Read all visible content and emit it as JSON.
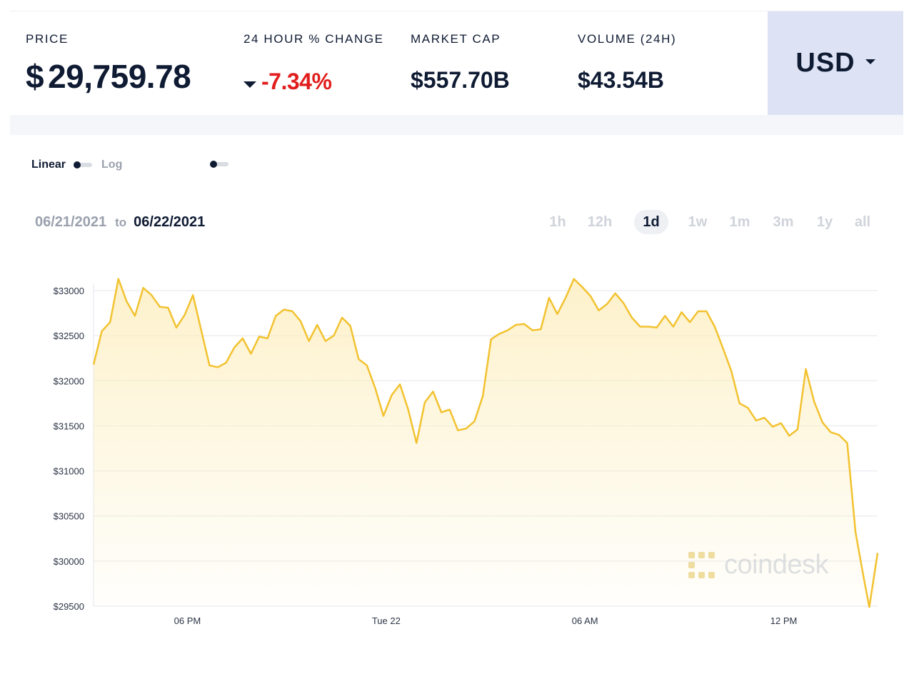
{
  "stats": {
    "price": {
      "label": "PRICE",
      "currency_symbol": "$",
      "value": "29,759.78"
    },
    "change_24h": {
      "label": "24 HOUR % CHANGE",
      "value": "-7.34%",
      "direction": "down"
    },
    "market_cap": {
      "label": "MARKET CAP",
      "value": "$557.70B"
    },
    "volume": {
      "label": "VOLUME (24H)",
      "value": "$43.54B"
    }
  },
  "currency_selector": {
    "value": "USD",
    "icon": "chevron-down-icon"
  },
  "scale_toggle": {
    "linear_label": "Linear",
    "log_label": "Log",
    "selected": "Linear"
  },
  "date_range": {
    "from": "06/21/2021",
    "to_word": "to",
    "to": "06/22/2021"
  },
  "time_ranges": [
    {
      "label": "1h",
      "active": false
    },
    {
      "label": "12h",
      "active": false
    },
    {
      "label": "1d",
      "active": true
    },
    {
      "label": "1w",
      "active": false
    },
    {
      "label": "1m",
      "active": false
    },
    {
      "label": "3m",
      "active": false
    },
    {
      "label": "1y",
      "active": false
    },
    {
      "label": "all",
      "active": false
    }
  ],
  "watermark": {
    "text": "coindesk"
  },
  "colors": {
    "line": "#f2c230",
    "fill_top": "#fdefc2",
    "negative": "#e11d1d",
    "accent_bg": "#dde3f4",
    "grid": "#e3e6ec"
  },
  "chart_data": {
    "type": "area",
    "title": "",
    "xlabel": "",
    "ylabel": "",
    "ylim": [
      29500,
      33000
    ],
    "y_ticks": [
      29500,
      30000,
      30500,
      31000,
      31500,
      32000,
      32500,
      33000
    ],
    "y_tick_labels": [
      "$29500",
      "$30000",
      "$30500",
      "$31000",
      "$31500",
      "$32000",
      "$32500",
      "$33000"
    ],
    "x_range": [
      "2021-06-21 15:10",
      "2021-06-22 14:50"
    ],
    "x_ticks": [
      {
        "label": "06 PM",
        "time": "2021-06-21 18:00"
      },
      {
        "label": "Tue 22",
        "time": "2021-06-22 00:00"
      },
      {
        "label": "06 AM",
        "time": "2021-06-22 06:00"
      },
      {
        "label": "12 PM",
        "time": "2021-06-22 12:00"
      }
    ],
    "grid": true,
    "series": [
      {
        "x": [
          "2021-06-21 15:10",
          "2021-06-21 15:25",
          "2021-06-21 15:40",
          "2021-06-21 15:55",
          "2021-06-21 16:10",
          "2021-06-21 16:25",
          "2021-06-21 16:40",
          "2021-06-21 16:55",
          "2021-06-21 17:10",
          "2021-06-21 17:25",
          "2021-06-21 17:40",
          "2021-06-21 17:55",
          "2021-06-21 18:10",
          "2021-06-21 18:25",
          "2021-06-21 18:40",
          "2021-06-21 18:55",
          "2021-06-21 19:10",
          "2021-06-21 19:25",
          "2021-06-21 19:40",
          "2021-06-21 19:55",
          "2021-06-21 20:10",
          "2021-06-21 20:25",
          "2021-06-21 20:40",
          "2021-06-21 20:55",
          "2021-06-21 21:10",
          "2021-06-21 21:25",
          "2021-06-21 21:40",
          "2021-06-21 21:55",
          "2021-06-21 22:10",
          "2021-06-21 22:25",
          "2021-06-21 22:40",
          "2021-06-21 22:55",
          "2021-06-21 23:10",
          "2021-06-21 23:25",
          "2021-06-21 23:40",
          "2021-06-21 23:55",
          "2021-06-22 00:10",
          "2021-06-22 00:25",
          "2021-06-22 00:40",
          "2021-06-22 00:55",
          "2021-06-22 01:10",
          "2021-06-22 01:25",
          "2021-06-22 01:40",
          "2021-06-22 01:55",
          "2021-06-22 02:10",
          "2021-06-22 02:25",
          "2021-06-22 02:40",
          "2021-06-22 02:55",
          "2021-06-22 03:10",
          "2021-06-22 03:25",
          "2021-06-22 03:40",
          "2021-06-22 03:55",
          "2021-06-22 04:10",
          "2021-06-22 04:25",
          "2021-06-22 04:40",
          "2021-06-22 04:55",
          "2021-06-22 05:10",
          "2021-06-22 05:25",
          "2021-06-22 05:40",
          "2021-06-22 05:55",
          "2021-06-22 06:10",
          "2021-06-22 06:25",
          "2021-06-22 06:40",
          "2021-06-22 06:55",
          "2021-06-22 07:10",
          "2021-06-22 07:25",
          "2021-06-22 07:40",
          "2021-06-22 07:55",
          "2021-06-22 08:10",
          "2021-06-22 08:25",
          "2021-06-22 08:40",
          "2021-06-22 08:55",
          "2021-06-22 09:10",
          "2021-06-22 09:25",
          "2021-06-22 09:40",
          "2021-06-22 09:55",
          "2021-06-22 10:10",
          "2021-06-22 10:25",
          "2021-06-22 10:40",
          "2021-06-22 10:55",
          "2021-06-22 11:10",
          "2021-06-22 11:25",
          "2021-06-22 11:40",
          "2021-06-22 11:55",
          "2021-06-22 12:10",
          "2021-06-22 12:25",
          "2021-06-22 12:40",
          "2021-06-22 12:55",
          "2021-06-22 13:10",
          "2021-06-22 13:25",
          "2021-06-22 13:40",
          "2021-06-22 13:55",
          "2021-06-22 14:10",
          "2021-06-22 14:25",
          "2021-06-22 14:35",
          "2021-06-22 14:50"
        ],
        "values": [
          32180,
          32550,
          32650,
          33130,
          32880,
          32720,
          33030,
          32950,
          32820,
          32810,
          32590,
          32730,
          32950,
          32560,
          32170,
          32150,
          32200,
          32370,
          32470,
          32300,
          32490,
          32470,
          32720,
          32790,
          32770,
          32660,
          32440,
          32620,
          32440,
          32500,
          32700,
          32610,
          32240,
          32170,
          31920,
          31610,
          31840,
          31960,
          31680,
          31310,
          31760,
          31880,
          31650,
          31680,
          31450,
          31470,
          31550,
          31830,
          32460,
          32520,
          32560,
          32620,
          32630,
          32560,
          32570,
          32920,
          32740,
          32920,
          33130,
          33040,
          32940,
          32780,
          32850,
          32970,
          32860,
          32700,
          32600,
          32600,
          32590,
          32720,
          32600,
          32760,
          32650,
          32770,
          32770,
          32600,
          32360,
          32110,
          31750,
          31700,
          31560,
          31590,
          31490,
          31530,
          31390,
          31460,
          32130,
          31770,
          31540,
          31430,
          31400,
          31310,
          30320,
          29810,
          29490,
          30090
        ]
      }
    ]
  }
}
